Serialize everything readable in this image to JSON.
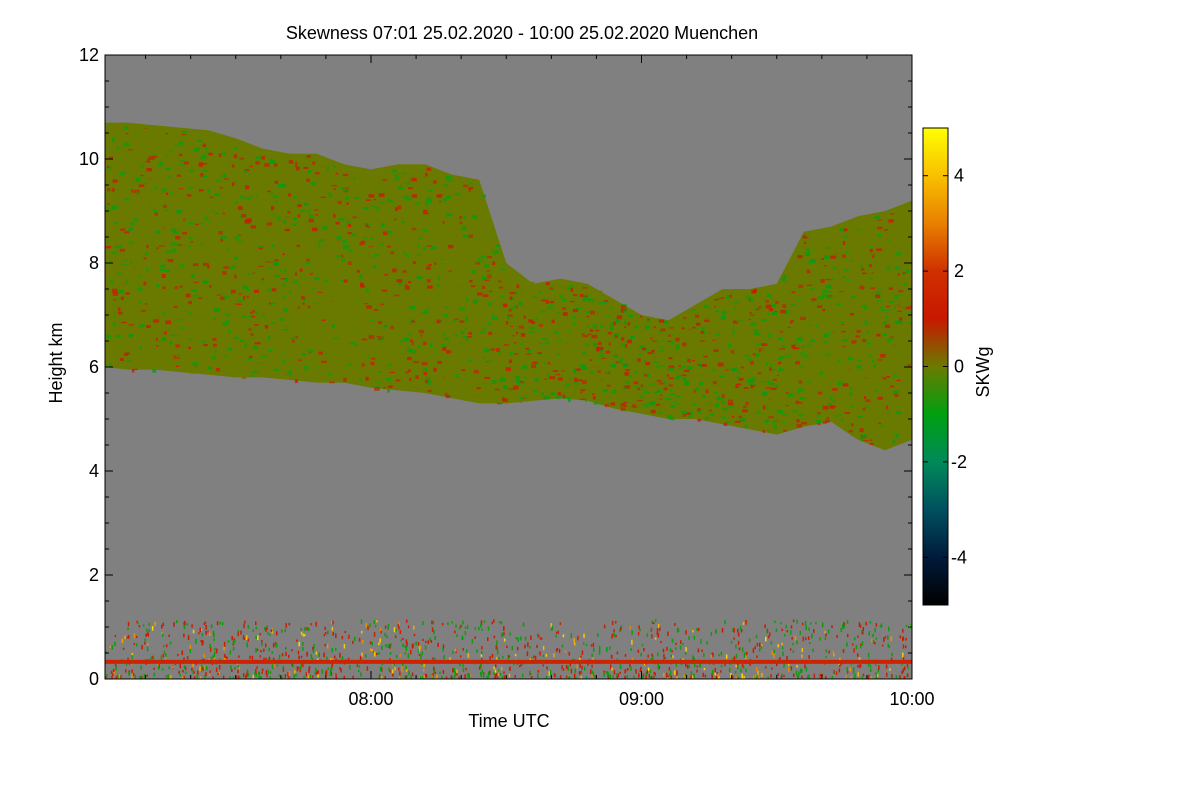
{
  "chart_data": {
    "type": "heatmap",
    "title": "Skewness   07:01 25.02.2020 - 10:00 25.02.2020 Muenchen",
    "xlabel": "Time UTC",
    "ylabel": "Height km",
    "xlim": [
      "07:01",
      "10:00"
    ],
    "xlim_min": [
      421,
      600
    ],
    "ylim": [
      0,
      12
    ],
    "x_ticks": [
      {
        "value": 480,
        "label": "08:00"
      },
      {
        "value": 540,
        "label": "09:00"
      },
      {
        "value": 600,
        "label": "10:00"
      }
    ],
    "y_ticks": [
      {
        "value": 0,
        "label": "0"
      },
      {
        "value": 2,
        "label": "2"
      },
      {
        "value": 4,
        "label": "4"
      },
      {
        "value": 6,
        "label": "6"
      },
      {
        "value": 8,
        "label": "8"
      },
      {
        "value": 10,
        "label": "10"
      },
      {
        "value": 12,
        "label": "12"
      }
    ],
    "colorbar": {
      "label": "SKWg",
      "range": [
        -5,
        5
      ],
      "ticks": [
        {
          "value": 4,
          "label": "4"
        },
        {
          "value": 2,
          "label": "2"
        },
        {
          "value": 0,
          "label": "0"
        },
        {
          "value": -2,
          "label": "-2"
        },
        {
          "value": -4,
          "label": "-4"
        }
      ],
      "stops": [
        {
          "value": -5,
          "color": "#000000"
        },
        {
          "value": -4,
          "color": "#001a3a"
        },
        {
          "value": -3,
          "color": "#005060"
        },
        {
          "value": -2,
          "color": "#008a58"
        },
        {
          "value": -1,
          "color": "#00a010"
        },
        {
          "value": 0,
          "color": "#6a7a00"
        },
        {
          "value": 1,
          "color": "#c81800"
        },
        {
          "value": 2,
          "color": "#d03000"
        },
        {
          "value": 3,
          "color": "#e88000"
        },
        {
          "value": 4,
          "color": "#f8c000"
        },
        {
          "value": 5,
          "color": "#ffff00"
        }
      ]
    },
    "background_color": "#808080",
    "cloud_layer": {
      "description_value_typical": 0,
      "time_min": [
        421,
        426,
        432,
        438,
        444,
        450,
        456,
        462,
        468,
        474,
        480,
        486,
        492,
        498,
        504,
        510,
        516,
        522,
        528,
        534,
        540,
        546,
        552,
        558,
        564,
        570,
        576,
        582,
        588,
        594,
        600
      ],
      "base_km": [
        6.0,
        5.95,
        5.95,
        5.9,
        5.85,
        5.8,
        5.8,
        5.75,
        5.7,
        5.7,
        5.6,
        5.55,
        5.5,
        5.4,
        5.3,
        5.3,
        5.35,
        5.4,
        5.35,
        5.2,
        5.1,
        5.0,
        5.0,
        4.9,
        4.8,
        4.7,
        4.85,
        4.95,
        4.6,
        4.4,
        4.6
      ],
      "top_km": [
        10.7,
        10.7,
        10.65,
        10.6,
        10.55,
        10.4,
        10.2,
        10.1,
        10.1,
        9.9,
        9.8,
        9.9,
        9.9,
        9.7,
        9.6,
        8.0,
        7.6,
        7.7,
        7.6,
        7.3,
        7.0,
        6.9,
        7.2,
        7.5,
        7.5,
        7.6,
        8.6,
        8.7,
        8.9,
        9.0,
        9.2
      ]
    },
    "surface_layer": {
      "height_km": 0.33,
      "value": 1.5
    }
  }
}
